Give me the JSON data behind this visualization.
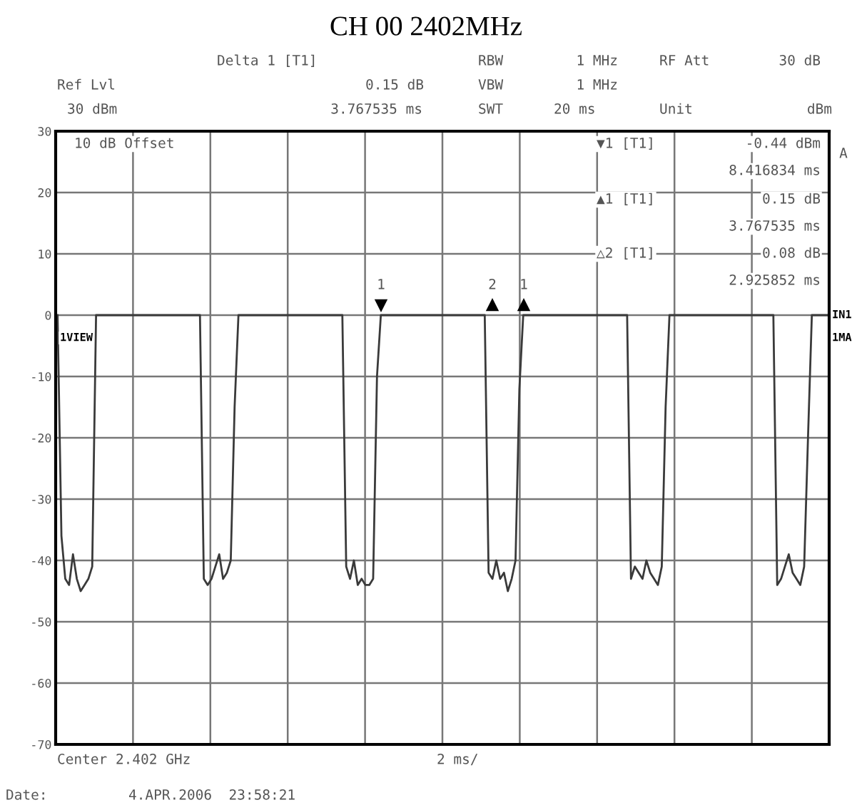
{
  "chart_data": {
    "type": "line",
    "title": "CH 00 2402MHz",
    "categories": [
      null,
      null,
      null,
      null,
      null,
      null,
      null,
      null,
      null,
      null,
      null,
      null,
      null,
      null,
      null,
      null,
      null,
      null,
      null,
      null,
      null,
      null,
      null,
      null,
      null,
      null,
      null,
      null,
      null,
      null,
      null,
      null,
      null,
      null,
      null,
      null,
      null,
      null,
      null,
      null,
      null,
      null,
      null,
      null,
      null,
      null,
      null,
      null,
      null,
      null,
      null,
      null,
      null,
      null,
      null,
      null,
      null,
      null,
      null,
      null,
      null,
      null,
      null,
      null,
      null,
      null,
      null,
      null,
      null,
      null,
      null,
      null,
      null,
      null,
      null,
      null,
      null,
      null,
      null,
      null,
      null,
      null,
      null,
      null,
      null,
      null,
      null,
      null,
      null,
      null,
      null,
      null,
      null,
      null,
      null,
      null,
      null,
      null,
      null,
      null,
      null,
      null,
      null,
      null,
      null,
      null,
      null,
      null,
      null,
      null,
      null,
      null,
      null,
      null,
      null,
      null,
      null,
      null,
      null,
      null,
      null,
      null,
      null,
      null,
      null,
      null,
      null,
      null,
      null,
      null,
      null,
      null,
      null,
      null,
      null,
      null,
      null,
      null,
      null,
      null,
      null,
      null,
      null,
      null,
      null,
      null,
      null,
      null,
      null,
      null,
      null,
      null,
      null,
      null,
      null,
      null,
      null,
      null,
      null,
      null,
      null,
      null,
      null,
      null,
      null,
      null,
      null,
      null,
      null,
      null,
      null,
      null,
      null,
      null,
      null,
      null,
      null,
      null,
      null,
      null,
      null,
      null,
      null,
      null,
      null,
      null,
      null,
      null,
      null,
      null,
      null,
      null,
      null,
      null,
      null,
      null,
      null,
      null,
      null,
      null,
      null
    ],
    "series": [
      {
        "color": "#3a3a3a",
        "values": [
          0,
          -36,
          -43,
          -44,
          -39,
          -43,
          -45,
          -44,
          -43,
          -41,
          0,
          0,
          0,
          0,
          0,
          0,
          0,
          0,
          0,
          0,
          0,
          0,
          0,
          0,
          0,
          0,
          0,
          0,
          0,
          0,
          0,
          0,
          0,
          0,
          0,
          0,
          0,
          0,
          -43,
          -44,
          -43,
          -41,
          -39,
          -43,
          -42,
          -40,
          -15,
          0,
          0,
          0,
          0,
          0,
          0,
          0,
          0,
          0,
          0,
          0,
          0,
          0,
          0,
          0,
          0,
          0,
          0,
          0,
          0,
          0,
          0,
          0,
          0,
          0,
          0,
          0,
          0,
          -41,
          -43,
          -40,
          -44,
          -43,
          -44,
          -44,
          -43,
          -10,
          0,
          0,
          0,
          0,
          0,
          0,
          0,
          0,
          0,
          0,
          0,
          0,
          0,
          0,
          0,
          0,
          0,
          0,
          0,
          0,
          0,
          0,
          0,
          0,
          0,
          0,
          0,
          0,
          -42,
          -43,
          -40,
          -43,
          -42,
          -45,
          -43,
          -40,
          -12,
          0,
          0,
          0,
          0,
          0,
          0,
          0,
          0,
          0,
          0,
          0,
          0,
          0,
          0,
          0,
          0,
          0,
          0,
          0,
          0,
          0,
          0,
          0,
          0,
          0,
          0,
          0,
          0,
          -43,
          -41,
          -42,
          -43,
          -40,
          -42,
          -43,
          -44,
          -41,
          -15,
          0,
          0,
          0,
          0,
          0,
          0,
          0,
          0,
          0,
          0,
          0,
          0,
          0,
          0,
          0,
          0,
          0,
          0,
          0,
          0,
          0,
          0,
          0,
          0,
          0,
          0,
          0,
          0,
          -44,
          -43,
          -41,
          -39,
          -42,
          -43,
          -44,
          -41,
          -20,
          0,
          0,
          0,
          0,
          0
        ]
      }
    ],
    "ylim": [
      -70,
      30
    ],
    "yticks": [
      30,
      20,
      10,
      0,
      -10,
      -20,
      -30,
      -40,
      -50,
      -60,
      -70
    ],
    "grid": true,
    "tick_labels": "y",
    "annotations": [
      "Delta 1 [T1]",
      "RBW",
      "1 MHz",
      "RF Att",
      "30 dB",
      "Ref Lvl",
      "0.15 dB",
      "VBW",
      "1 MHz",
      "30 dBm",
      "3.767535 ms",
      "SWT",
      "20 ms",
      "Unit",
      "dBm",
      "10 dB Offset",
      "1VIEW",
      "▼1 [T1]",
      "-0.44 dBm",
      "8.416834 ms",
      "▲1 [T1]",
      "0.15 dB",
      "3.767535 ms",
      "△2 [T1]",
      "0.08 dB",
      "2.925852 ms",
      "A",
      "IN1",
      "1MA",
      "Center 2.402 GHz",
      "2 ms/",
      "Date:",
      "4.APR.2006  23:58:21",
      "1",
      "2",
      "1"
    ]
  }
}
